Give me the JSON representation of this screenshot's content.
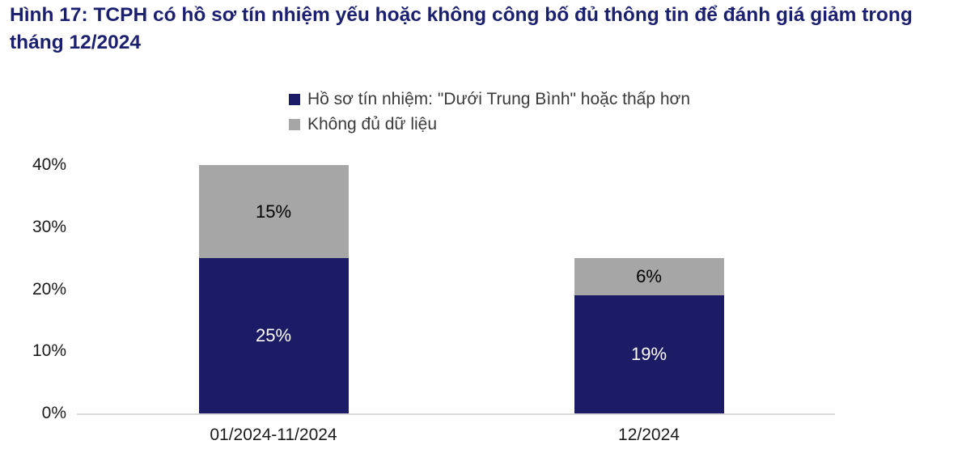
{
  "title": "Hình 17: TCPH có hồ sơ tín nhiệm yếu hoặc không công bố đủ thông tin để đánh giá giảm trong tháng 12/2024",
  "colors": {
    "title": "#1b1f6f",
    "axis": "#d9d9d9",
    "navy": "#1b1b66",
    "gray": "#a6a6a6"
  },
  "chart_data": {
    "type": "bar",
    "stacked": true,
    "title": "Hình 17: TCPH có hồ sơ tín nhiệm yếu hoặc không công bố đủ thông tin để đánh giá giảm trong tháng 12/2024",
    "categories": [
      "01/2024-11/2024",
      "12/2024"
    ],
    "series": [
      {
        "name": "Hồ sơ tín nhiệm: \"Dưới Trung Bình\" hoặc thấp hơn",
        "values": [
          25,
          19
        ],
        "color": "#1b1b66",
        "label_color": "#ffffff"
      },
      {
        "name": "Không đủ dữ liệu",
        "values": [
          15,
          6
        ],
        "color": "#a6a6a6",
        "label_color": "#000000"
      }
    ],
    "value_labels": [
      [
        "25%",
        "19%"
      ],
      [
        "15%",
        "6%"
      ]
    ],
    "ylim": [
      0,
      40
    ],
    "ytick_values": [
      0,
      10,
      20,
      30,
      40
    ],
    "ytick_labels": [
      "0%",
      "10%",
      "20%",
      "30%",
      "40%"
    ],
    "legend_position": "top",
    "grid": false
  }
}
